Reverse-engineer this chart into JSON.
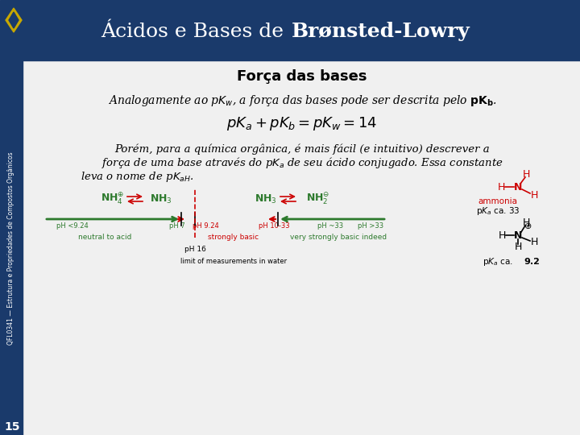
{
  "title_normal": "Ácidos e Bases de ",
  "title_bold": "Brønsted-Lowry",
  "header_bg": "#1a3a6b",
  "header_text_color": "#ffffff",
  "slide_bg": "#f0f0f0",
  "left_bar_color": "#1a3a6b",
  "side_text": "QFL0341 — Estrutura e Propriedades de Compostos Orgânicos",
  "section_title": "Força das bases",
  "page_number": "15",
  "logo_color": "#c8a800"
}
